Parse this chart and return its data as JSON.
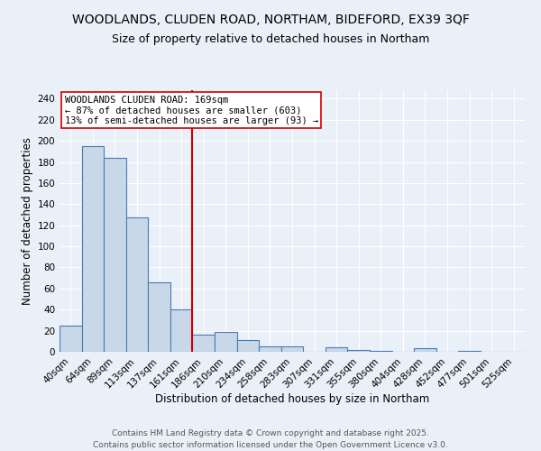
{
  "title_line1": "WOODLANDS, CLUDEN ROAD, NORTHAM, BIDEFORD, EX39 3QF",
  "title_line2": "Size of property relative to detached houses in Northam",
  "xlabel": "Distribution of detached houses by size in Northam",
  "ylabel": "Number of detached properties",
  "bar_labels": [
    "40sqm",
    "64sqm",
    "89sqm",
    "113sqm",
    "137sqm",
    "161sqm",
    "186sqm",
    "210sqm",
    "234sqm",
    "258sqm",
    "283sqm",
    "307sqm",
    "331sqm",
    "355sqm",
    "380sqm",
    "404sqm",
    "428sqm",
    "452sqm",
    "477sqm",
    "501sqm",
    "525sqm"
  ],
  "bar_values": [
    25,
    195,
    184,
    127,
    66,
    40,
    16,
    19,
    11,
    5,
    5,
    0,
    4,
    2,
    1,
    0,
    3,
    0,
    1,
    0,
    0
  ],
  "bar_color": "#c8d8e8",
  "bar_edge_color": "#4a7ab5",
  "vline_x": 5.5,
  "vline_color": "#cc0000",
  "annotation_text": "WOODLANDS CLUDEN ROAD: 169sqm\n← 87% of detached houses are smaller (603)\n13% of semi-detached houses are larger (93) →",
  "annotation_box_color": "#ffffff",
  "annotation_box_edge_color": "#cc0000",
  "ylim": [
    0,
    248
  ],
  "yticks": [
    0,
    20,
    40,
    60,
    80,
    100,
    120,
    140,
    160,
    180,
    200,
    220,
    240
  ],
  "footer_line1": "Contains HM Land Registry data © Crown copyright and database right 2025.",
  "footer_line2": "Contains public sector information licensed under the Open Government Licence v3.0.",
  "background_color": "#eaf0f8",
  "plot_bg_color": "#eaf0f8",
  "grid_color": "#ffffff",
  "title_fontsize": 10,
  "subtitle_fontsize": 9,
  "axis_label_fontsize": 8.5,
  "tick_fontsize": 7.5,
  "annotation_fontsize": 7.5,
  "footer_fontsize": 6.5
}
